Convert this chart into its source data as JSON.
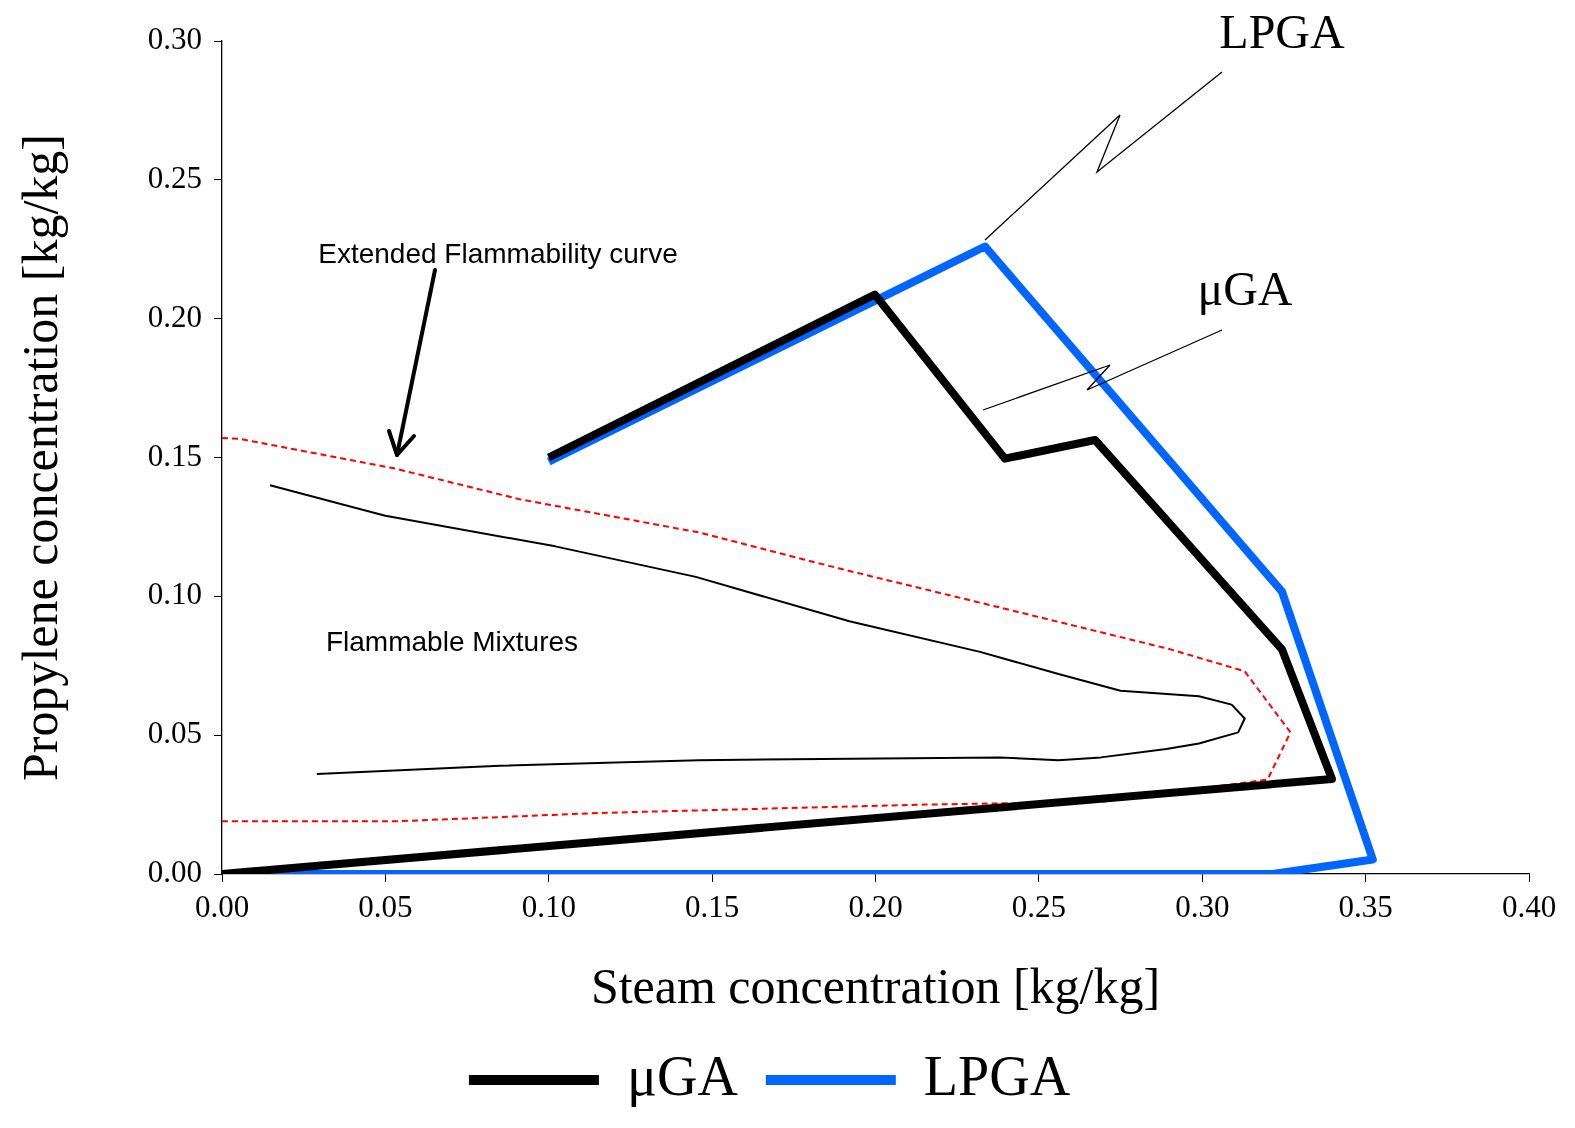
{
  "chart_data": {
    "type": "line",
    "xlabel": "Steam concentration [kg/kg]",
    "ylabel": "Propylene concentration [kg/kg]",
    "xlim": [
      0,
      0.4
    ],
    "xticks": [
      {
        "value": 0,
        "label": "0.00"
      },
      {
        "value": 0.05,
        "label": "0.05"
      },
      {
        "value": 0.1,
        "label": "0.10"
      },
      {
        "value": 0.15,
        "label": "0.15"
      },
      {
        "value": 0.2,
        "label": "0.20"
      },
      {
        "value": 0.25,
        "label": "0.25"
      },
      {
        "value": 0.3,
        "label": "0.30"
      },
      {
        "value": 0.35,
        "label": "0.35"
      },
      {
        "value": 0.4,
        "label": "0.40"
      }
    ],
    "ylim": [
      0,
      0.3
    ],
    "yticks": [
      {
        "value": 0,
        "label": "0.00"
      },
      {
        "value": 0.05,
        "label": "0.05"
      },
      {
        "value": 0.1,
        "label": "0.10"
      },
      {
        "value": 0.15,
        "label": "0.15"
      },
      {
        "value": 0.2,
        "label": "0.20"
      },
      {
        "value": 0.25,
        "label": "0.25"
      },
      {
        "value": 0.3,
        "label": "0.30"
      }
    ],
    "grid": false,
    "legend": "bottom",
    "marker": "none",
    "series": [
      {
        "name": "μGA",
        "color": "#000000",
        "x": [
          0.1,
          0.1998,
          0.2396,
          0.2672,
          0.3244,
          0.3397,
          0
        ],
        "values": [
          0.15,
          0.2087,
          0.1496,
          0.1563,
          0.0809,
          0.0342,
          0
        ]
      },
      {
        "name": "LPGA",
        "color": "#0066ff",
        "x": [
          0.1,
          0.2335,
          0.3244,
          0.3522,
          0.3216,
          0
        ],
        "values": [
          0.1485,
          0.226,
          0.1017,
          0.0052,
          0,
          0
        ]
      },
      {
        "color": "#ff0000",
        "line_style": "dashed",
        "x": [
          0,
          0.0055,
          0.053,
          0.091,
          0.146,
          0.189,
          0.238,
          0.29,
          0.313,
          0.327,
          0.32,
          0.269,
          0.215,
          0.116,
          0.054,
          0
        ],
        "values": [
          0.157,
          0.1567,
          0.146,
          0.135,
          0.123,
          0.11,
          0.096,
          0.081,
          0.073,
          0.051,
          0.034,
          0.026,
          0.025,
          0.022,
          0.019,
          0.019
        ]
      },
      {
        "color": "#000000",
        "x": [
          0.0147,
          0.05,
          0.102,
          0.145,
          0.192,
          0.232,
          0.256,
          0.275,
          0.299,
          0.309,
          0.313,
          0.311,
          0.299,
          0.289,
          0.269,
          0.256,
          0.238,
          0.146,
          0.085,
          0.029
        ],
        "values": [
          0.14,
          0.129,
          0.118,
          0.107,
          0.091,
          0.08,
          0.072,
          0.066,
          0.064,
          0.061,
          0.056,
          0.051,
          0.047,
          0.045,
          0.042,
          0.041,
          0.042,
          0.041,
          0.039,
          0.036
        ]
      }
    ],
    "annotations": [
      "Extended Flammability curve",
      "Flammable Mixtures",
      "LPGA",
      "μGA"
    ]
  }
}
